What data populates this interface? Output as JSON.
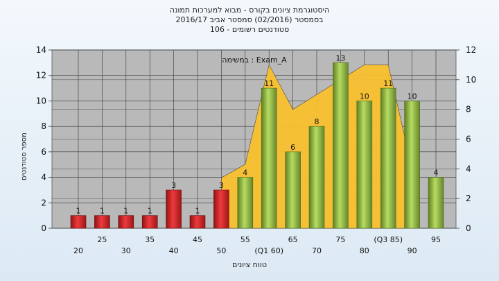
{
  "titles": {
    "line1": "היסטוגרמת ציונים בקורס - מבוא למערכות תמונה",
    "line2": "בסמסטר  (02/2016)  סמסטר אביב 2016/17",
    "line3": "סטודנטים רשומים - 106"
  },
  "chart_data": {
    "type": "bar",
    "annotation": "במשימה : Exam_A",
    "ylabel_left": "מספר סטודנטים",
    "xlabel": "טווח ציונים",
    "ylim_left": [
      0,
      14
    ],
    "yticks_left": [
      0,
      2,
      4,
      6,
      8,
      10,
      12,
      14
    ],
    "ylim_right": [
      0,
      12
    ],
    "yticks_right": [
      0,
      2,
      4,
      6,
      8,
      10,
      12
    ],
    "categories": [
      "20",
      "25",
      "30",
      "35",
      "40",
      "45",
      "50",
      "55",
      "(Q1 60)",
      "65",
      "70",
      "75",
      "80",
      "(Q3 85)",
      "90",
      "95"
    ],
    "values": [
      1,
      1,
      1,
      1,
      3,
      1,
      3,
      4,
      11,
      6,
      8,
      13,
      10,
      11,
      10,
      4
    ],
    "fail_threshold": 55,
    "colors": {
      "fail_bar": "#e0272a",
      "pass_bar": "#9fc84a",
      "area": "#f9c12e",
      "plot_bg": "#b9b9b9",
      "grid": "#333333"
    },
    "area_series": {
      "x": [
        "50",
        "55",
        "(Q1 60)",
        "65",
        "70",
        "75",
        "80",
        "(Q3 85)",
        "90"
      ],
      "values": [
        3.4,
        4.3,
        11,
        8,
        9,
        10,
        11,
        11,
        4
      ]
    },
    "grid": true
  }
}
